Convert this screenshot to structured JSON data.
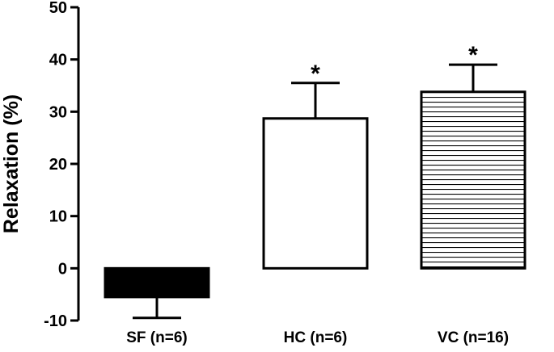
{
  "chart_data": {
    "type": "bar",
    "title": "",
    "xlabel": "",
    "ylabel": "Relaxation (%)",
    "ylim": [
      -10,
      50
    ],
    "yticks": [
      -10,
      0,
      10,
      20,
      30,
      40,
      50
    ],
    "categories": [
      "SF (n=6)",
      "HC (n=6)",
      "VC (n=16)"
    ],
    "values": [
      -5.5,
      28.7,
      33.8
    ],
    "errors": [
      4.0,
      6.8,
      5.2
    ],
    "significance": [
      "",
      "*",
      "*"
    ],
    "fills": [
      "solid-black",
      "white",
      "horizontal-stripes"
    ],
    "bar_color": "#000000",
    "grid": false,
    "legend": "none"
  }
}
